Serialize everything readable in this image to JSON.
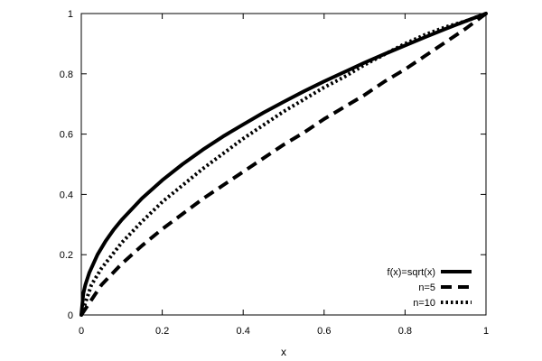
{
  "chart_data": {
    "type": "line",
    "title": "",
    "xlabel": "x",
    "ylabel": "",
    "xlim": [
      0,
      1
    ],
    "ylim": [
      0,
      1
    ],
    "grid": false,
    "legend_position": "bottom-right",
    "x_ticks": [
      {
        "value": 0,
        "label": "0"
      },
      {
        "value": 0.2,
        "label": "0.2"
      },
      {
        "value": 0.4,
        "label": "0.4"
      },
      {
        "value": 0.6,
        "label": "0.6"
      },
      {
        "value": 0.8,
        "label": "0.8"
      },
      {
        "value": 1,
        "label": "1"
      }
    ],
    "y_ticks": [
      {
        "value": 0,
        "label": "0"
      },
      {
        "value": 0.2,
        "label": "0.2"
      },
      {
        "value": 0.4,
        "label": "0.4"
      },
      {
        "value": 0.6,
        "label": "0.6"
      },
      {
        "value": 0.8,
        "label": "0.8"
      },
      {
        "value": 1,
        "label": "1"
      }
    ],
    "series": [
      {
        "name": "f(x)=sqrt(x)",
        "style": "solid",
        "color": "#000000",
        "x": [
          0,
          0.005,
          0.01,
          0.02,
          0.04,
          0.06,
          0.08,
          0.1,
          0.15,
          0.2,
          0.25,
          0.3,
          0.35,
          0.4,
          0.45,
          0.5,
          0.55,
          0.6,
          0.65,
          0.7,
          0.75,
          0.8,
          0.85,
          0.9,
          0.95,
          1
        ],
        "y": [
          0,
          0.071,
          0.1,
          0.141,
          0.2,
          0.245,
          0.283,
          0.316,
          0.387,
          0.447,
          0.5,
          0.548,
          0.592,
          0.632,
          0.671,
          0.707,
          0.742,
          0.775,
          0.806,
          0.837,
          0.866,
          0.894,
          0.922,
          0.949,
          0.975,
          1
        ]
      },
      {
        "name": "n=5",
        "style": "dashed",
        "color": "#000000",
        "x": [
          0,
          0.05,
          0.1,
          0.15,
          0.2,
          0.25,
          0.3,
          0.35,
          0.4,
          0.45,
          0.5,
          0.55,
          0.6,
          0.65,
          0.7,
          0.75,
          0.8,
          0.85,
          0.9,
          0.95,
          1
        ],
        "y": [
          0,
          0.1,
          0.17,
          0.23,
          0.285,
          0.335,
          0.385,
          0.43,
          0.475,
          0.52,
          0.565,
          0.605,
          0.65,
          0.69,
          0.73,
          0.775,
          0.815,
          0.86,
          0.905,
          0.95,
          1
        ]
      },
      {
        "name": "n=10",
        "style": "dotted",
        "color": "#000000",
        "x": [
          0,
          0.025,
          0.05,
          0.1,
          0.15,
          0.2,
          0.25,
          0.3,
          0.35,
          0.4,
          0.45,
          0.5,
          0.55,
          0.6,
          0.65,
          0.7,
          0.75,
          0.8,
          0.85,
          0.9,
          0.95,
          1
        ],
        "y": [
          0,
          0.1,
          0.155,
          0.24,
          0.31,
          0.375,
          0.43,
          0.485,
          0.535,
          0.585,
          0.63,
          0.675,
          0.715,
          0.755,
          0.79,
          0.83,
          0.865,
          0.9,
          0.93,
          0.955,
          0.975,
          1
        ]
      }
    ]
  }
}
